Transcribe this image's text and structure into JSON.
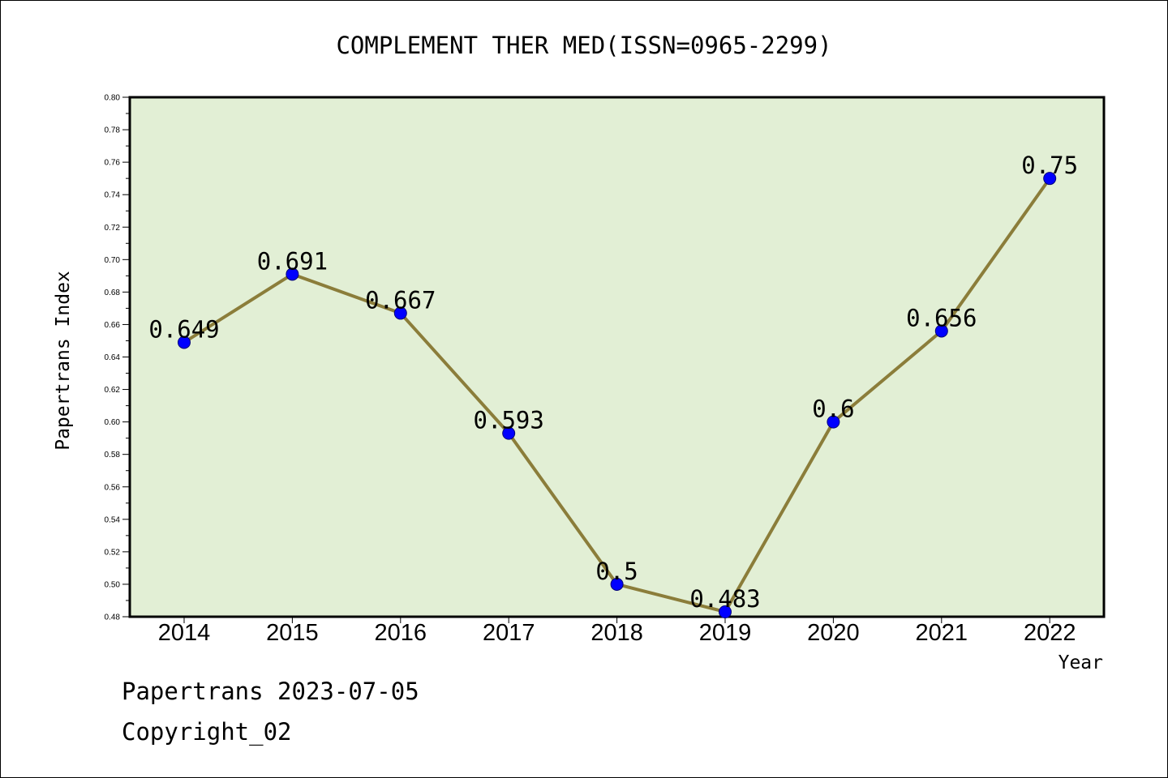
{
  "chart_data": {
    "type": "line",
    "title": "COMPLEMENT THER MED(ISSN=0965-2299)",
    "xlabel": "Year",
    "ylabel": "Papertrans Index",
    "categories": [
      "2014",
      "2015",
      "2016",
      "2017",
      "2018",
      "2019",
      "2020",
      "2021",
      "2022"
    ],
    "values": [
      0.649,
      0.691,
      0.667,
      0.593,
      0.5,
      0.483,
      0.6,
      0.656,
      0.75
    ],
    "value_labels": [
      "0.649",
      "0.691",
      "0.667",
      "0.593",
      "0.5",
      "0.483",
      "0.6",
      "0.656",
      "0.75"
    ],
    "ylim": [
      0.48,
      0.8
    ],
    "yticks": [
      "0.48",
      "0.50",
      "0.52",
      "0.54",
      "0.56",
      "0.58",
      "0.60",
      "0.62",
      "0.64",
      "0.66",
      "0.68",
      "0.70",
      "0.72",
      "0.74",
      "0.76",
      "0.78",
      "0.80"
    ],
    "grid": false,
    "colors": {
      "plot_background": "#e2efd5",
      "line": "#8b7d3a",
      "marker": "#0000ff"
    }
  },
  "footer": {
    "line1": "Papertrans 2023-07-05",
    "line2": "Copyright_02"
  }
}
